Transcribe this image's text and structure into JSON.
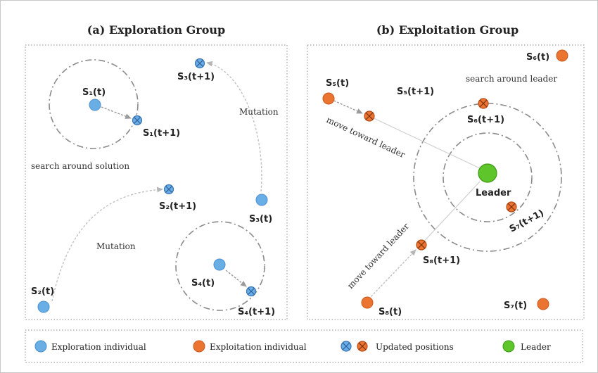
{
  "titles": {
    "exploration": "(a) Exploration Group",
    "exploitation": "(b) Exploitation Group"
  },
  "exploration": {
    "s1": "S₁(t)",
    "s1_next": "S₁(t+1)",
    "s2": "S₂(t)",
    "s2_next": "S₂(t+1)",
    "s3": "S₃(t)",
    "s3_next": "S₃(t+1)",
    "s4": "S₄(t)",
    "s4_next": "S₄(t+1)",
    "search_note": "search around solution",
    "mutation_1": "Mutation",
    "mutation_2": "Mutation"
  },
  "exploitation": {
    "s5": "S₅(t)",
    "s5_next": "S₅(t+1)",
    "s6": "S₆(t)",
    "s6_next": "S₆(t+1)",
    "s7": "S₇(t)",
    "s7_next": "S₇(t+1)",
    "s8": "S₈(t)",
    "s8_next": "S₈(t+1)",
    "leader": "Leader",
    "search_leader": "search around leader",
    "move_1": "move toward leader",
    "move_2": "move toward leader"
  },
  "legend": {
    "exploration": "Exploration individual",
    "exploitation": "Exploitation individual",
    "updated": "Updated positions",
    "leader": "Leader"
  },
  "colors": {
    "exploration": "#6aaee6",
    "exploitation": "#ec7431",
    "leader": "#5ec52a",
    "circle": "#8a8a8a",
    "border": "#9a9a9a"
  }
}
